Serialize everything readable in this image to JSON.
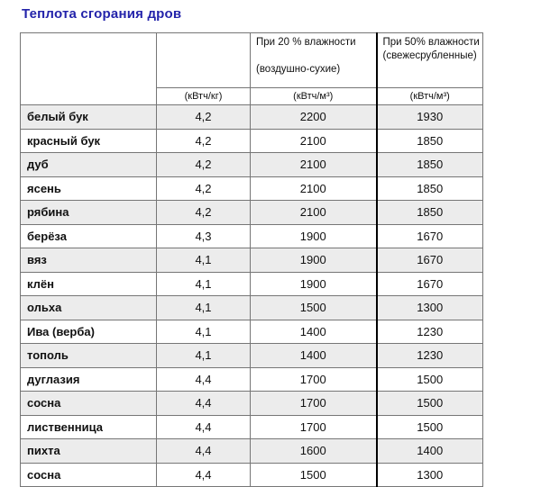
{
  "page": {
    "title": "Теплота сгорания дров"
  },
  "colors": {
    "title_text": "#2323aa",
    "row_stripe": "#ececec",
    "table_border": "#767676",
    "column_divider": "#000000"
  },
  "table": {
    "header": {
      "col20": {
        "line1": "При 20 % влажности",
        "line2": "(воздушно-сухие)"
      },
      "col50": {
        "line1": "При 50% влажности",
        "line2": "(свежесрубленные)"
      },
      "units": {
        "kg": "(кВтч/кг)",
        "m3_20": "(кВтч/м³)",
        "m3_50": "(кВтч/м³)"
      }
    },
    "rows": [
      {
        "name": "белый бук",
        "kwh_kg": "4,2",
        "v20": "2200",
        "v50": "1930"
      },
      {
        "name": "красный бук",
        "kwh_kg": "4,2",
        "v20": "2100",
        "v50": "1850"
      },
      {
        "name": "дуб",
        "kwh_kg": "4,2",
        "v20": "2100",
        "v50": "1850"
      },
      {
        "name": "ясень",
        "kwh_kg": "4,2",
        "v20": "2100",
        "v50": "1850"
      },
      {
        "name": "рябина",
        "kwh_kg": "4,2",
        "v20": "2100",
        "v50": "1850"
      },
      {
        "name": "берёза",
        "kwh_kg": "4,3",
        "v20": "1900",
        "v50": "1670"
      },
      {
        "name": "вяз",
        "kwh_kg": "4,1",
        "v20": "1900",
        "v50": "1670"
      },
      {
        "name": "клён",
        "kwh_kg": "4,1",
        "v20": "1900",
        "v50": "1670"
      },
      {
        "name": "ольха",
        "kwh_kg": "4,1",
        "v20": "1500",
        "v50": "1300"
      },
      {
        "name": "Ива (верба)",
        "kwh_kg": "4,1",
        "v20": "1400",
        "v50": "1230"
      },
      {
        "name": "тополь",
        "kwh_kg": "4,1",
        "v20": "1400",
        "v50": "1230"
      },
      {
        "name": "дуглазия",
        "kwh_kg": "4,4",
        "v20": "1700",
        "v50": "1500"
      },
      {
        "name": "сосна",
        "kwh_kg": "4,4",
        "v20": "1700",
        "v50": "1500"
      },
      {
        "name": "лиственница",
        "kwh_kg": "4,4",
        "v20": "1700",
        "v50": "1500"
      },
      {
        "name": "пихта",
        "kwh_kg": "4,4",
        "v20": "1600",
        "v50": "1400"
      },
      {
        "name": "сосна",
        "kwh_kg": "4,4",
        "v20": "1500",
        "v50": "1300"
      }
    ]
  }
}
